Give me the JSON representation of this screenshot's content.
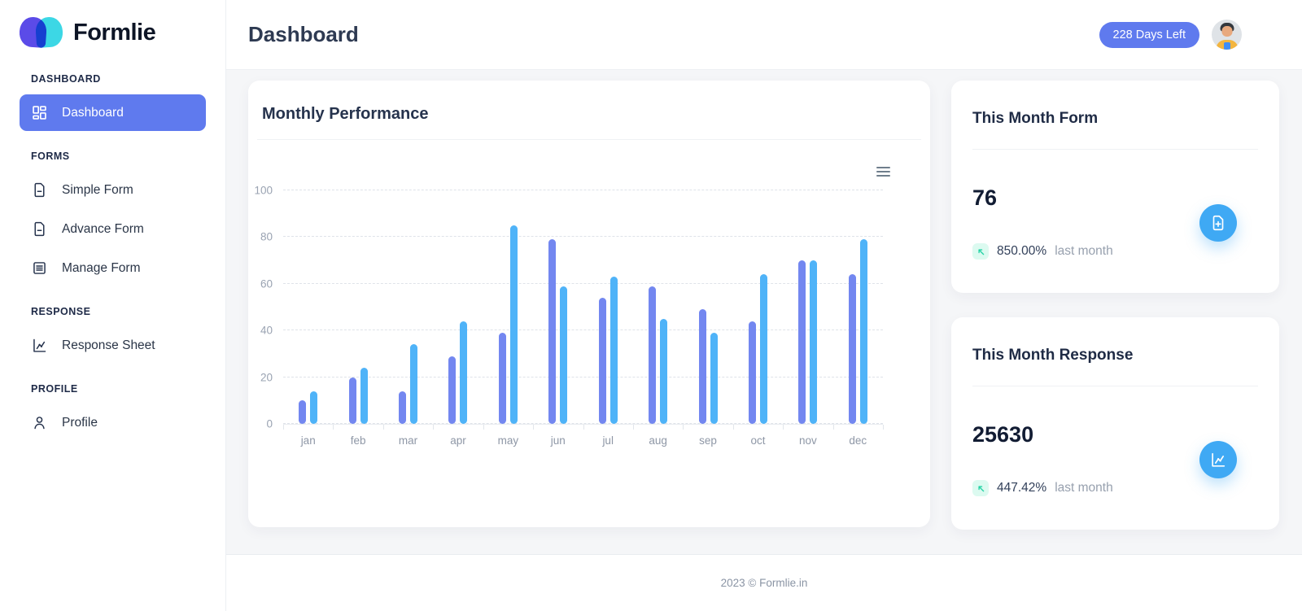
{
  "brand": {
    "name": "Formlie"
  },
  "sidebar": {
    "sections": [
      {
        "label": "DASHBOARD",
        "items": [
          {
            "label": "Dashboard",
            "icon": "dashboard-grid-icon",
            "active": true
          }
        ]
      },
      {
        "label": "FORMS",
        "items": [
          {
            "label": "Simple Form",
            "icon": "document-icon",
            "active": false
          },
          {
            "label": "Advance Form",
            "icon": "document-icon",
            "active": false
          },
          {
            "label": "Manage Form",
            "icon": "document-lines-icon",
            "active": false
          }
        ]
      },
      {
        "label": "RESPONSE",
        "items": [
          {
            "label": "Response Sheet",
            "icon": "line-chart-icon",
            "active": false
          }
        ]
      },
      {
        "label": "PROFILE",
        "items": [
          {
            "label": "Profile",
            "icon": "user-icon",
            "active": false
          }
        ]
      }
    ]
  },
  "header": {
    "title": "Dashboard",
    "days_left_badge": "228 Days Left"
  },
  "chart_card": {
    "title": "Monthly Performance",
    "toolbar_icon": "menu-icon"
  },
  "chart_data": {
    "type": "bar",
    "title": "Monthly Performance",
    "categories": [
      "jan",
      "feb",
      "mar",
      "apr",
      "may",
      "jun",
      "jul",
      "aug",
      "sep",
      "oct",
      "nov",
      "dec"
    ],
    "series": [
      {
        "name": "series-1",
        "color": "#7387F0",
        "values": [
          10,
          20,
          14,
          29,
          39,
          79,
          54,
          59,
          49,
          44,
          70,
          64
        ]
      },
      {
        "name": "series-2",
        "color": "#4FB3F8",
        "values": [
          14,
          24,
          34,
          44,
          85,
          59,
          63,
          45,
          39,
          64,
          70,
          79
        ]
      }
    ],
    "xlabel": "",
    "ylabel": "",
    "ylim": [
      0,
      100
    ],
    "yticks": [
      0,
      20,
      40,
      60,
      80,
      100
    ],
    "grid": "horizontal-dashed",
    "legend": "none"
  },
  "stats": [
    {
      "title": "This Month Form",
      "value": "76",
      "change": "850.00%",
      "change_suffix": "last month",
      "trend": "up",
      "icon": "file-plus-icon"
    },
    {
      "title": "This Month Response",
      "value": "25630",
      "change": "447.42%",
      "change_suffix": "last month",
      "trend": "up",
      "icon": "line-chart-icon"
    }
  ],
  "footer": {
    "copyright": "2023 © Formlie.in"
  },
  "colors": {
    "accent_blue": "#5F7AEE",
    "bar_series_1": "#7387F0",
    "bar_series_2": "#4FB3F8",
    "stat_icon_blue": "#3FA9F4",
    "positive_chip_bg": "#DCFAF0",
    "positive_chip_arrow": "#27D3A6",
    "logo_purple": "#5B4BE8",
    "logo_cyan": "#3CD7E5"
  }
}
